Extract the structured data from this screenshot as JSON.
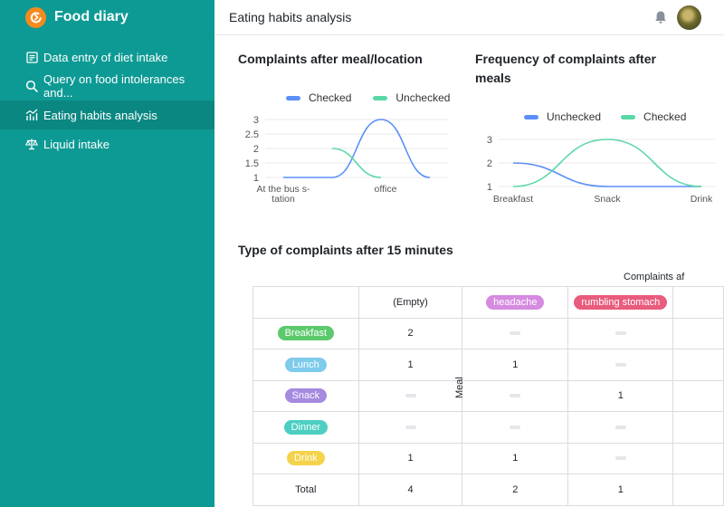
{
  "app": {
    "title": "Food diary"
  },
  "sidebar": {
    "items": [
      {
        "label": "Data entry of diet intake",
        "icon": "form-icon",
        "active": false
      },
      {
        "label": "Query on food intolerances and...",
        "icon": "search-icon",
        "active": false
      },
      {
        "label": "Eating habits analysis",
        "icon": "chart-icon",
        "active": true
      },
      {
        "label": "Liquid intake",
        "icon": "scale-icon",
        "active": false
      }
    ]
  },
  "topbar": {
    "title": "Eating habits analysis"
  },
  "chart1": {
    "title": "Complaints after meal/location"
  },
  "chart2": {
    "title": "Frequency of complaints after meals"
  },
  "pivot": {
    "title": "Type of complaints after 15 minutes",
    "columns_header": "Complaints af",
    "row_header": "Meal",
    "columns": [
      {
        "label": "(Empty)",
        "color": ""
      },
      {
        "label": "headache",
        "color": "#d58be0"
      },
      {
        "label": "rumbling stomach",
        "color": "#e85c7d"
      }
    ],
    "rows": [
      {
        "label": "Breakfast",
        "color": "#5cc96c",
        "values": [
          "2",
          "",
          ""
        ]
      },
      {
        "label": "Lunch",
        "color": "#7ecbeb",
        "values": [
          "1",
          "1",
          ""
        ]
      },
      {
        "label": "Snack",
        "color": "#a58ae0",
        "values": [
          "",
          "",
          "1"
        ]
      },
      {
        "label": "Dinner",
        "color": "#4ccfc1",
        "values": [
          "",
          "",
          ""
        ]
      },
      {
        "label": "Drink",
        "color": "#f4d34a",
        "values": [
          "1",
          "1",
          ""
        ]
      }
    ],
    "total": {
      "label": "Total",
      "values": [
        "4",
        "2",
        "1"
      ]
    }
  },
  "chart_data": [
    {
      "type": "line",
      "title": "Complaints after meal/location",
      "legend_position": "top",
      "colors": {
        "Checked": "#5b8ff9",
        "Unchecked": "#5ad8a6"
      },
      "categories": [
        "At the bus station",
        "",
        "office",
        ""
      ],
      "category_labels": [
        "At the bus s-\ntation",
        "office"
      ],
      "series": [
        {
          "name": "Checked",
          "values": [
            1,
            1,
            3,
            1
          ]
        },
        {
          "name": "Unchecked",
          "values": [
            null,
            2,
            1,
            null
          ]
        }
      ],
      "yticks": [
        "3",
        "2.5",
        "2",
        "1.5",
        "1"
      ],
      "ylim": [
        1,
        3
      ],
      "grid": true
    },
    {
      "type": "line",
      "title": "Frequency of complaints after meals",
      "legend_position": "top",
      "colors": {
        "Unchecked": "#5b8ff9",
        "Checked": "#5ad8a6"
      },
      "categories": [
        "Breakfast",
        "Snack",
        "Drink"
      ],
      "series": [
        {
          "name": "Unchecked",
          "values": [
            2,
            1,
            1
          ]
        },
        {
          "name": "Checked",
          "values": [
            1,
            3,
            1
          ]
        }
      ],
      "yticks": [
        "3",
        "2",
        "1"
      ],
      "ylim": [
        1,
        3
      ],
      "grid": true
    }
  ]
}
